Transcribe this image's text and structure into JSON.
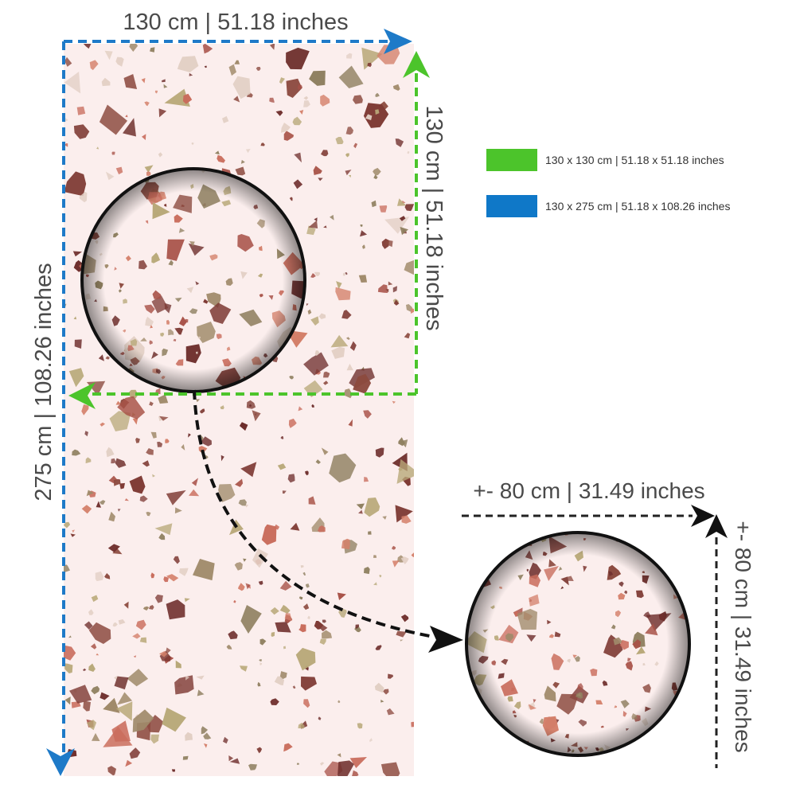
{
  "dimensions": {
    "top_width": "130 cm | 51.18 inches",
    "green_height": "130 cm | 51.18 inches",
    "full_height": "275 cm | 108.26 inches",
    "round_width": "+- 80 cm | 31.49 inches",
    "round_height": "+- 80 cm | 31.49 inches"
  },
  "legend": {
    "items": [
      {
        "color": "#4cc42b",
        "label": "130 x 130 cm | 51.18 x 51.18 inches"
      },
      {
        "color": "#0f78c8",
        "label": "130 x 275 cm | 51.18 x 108.26 inches"
      }
    ]
  },
  "colors": {
    "panel_bg": "#fbeeed",
    "blue_line": "#1e7ac8",
    "green_line": "#4cc42b",
    "black_line": "#1a1a1a",
    "chips": [
      "#8c4a3f",
      "#a08a6a",
      "#d4806a",
      "#b8a878",
      "#7e3a34",
      "#e2cfc4",
      "#a85248",
      "#8f8060",
      "#c96c5c",
      "#6e2e2c"
    ]
  }
}
